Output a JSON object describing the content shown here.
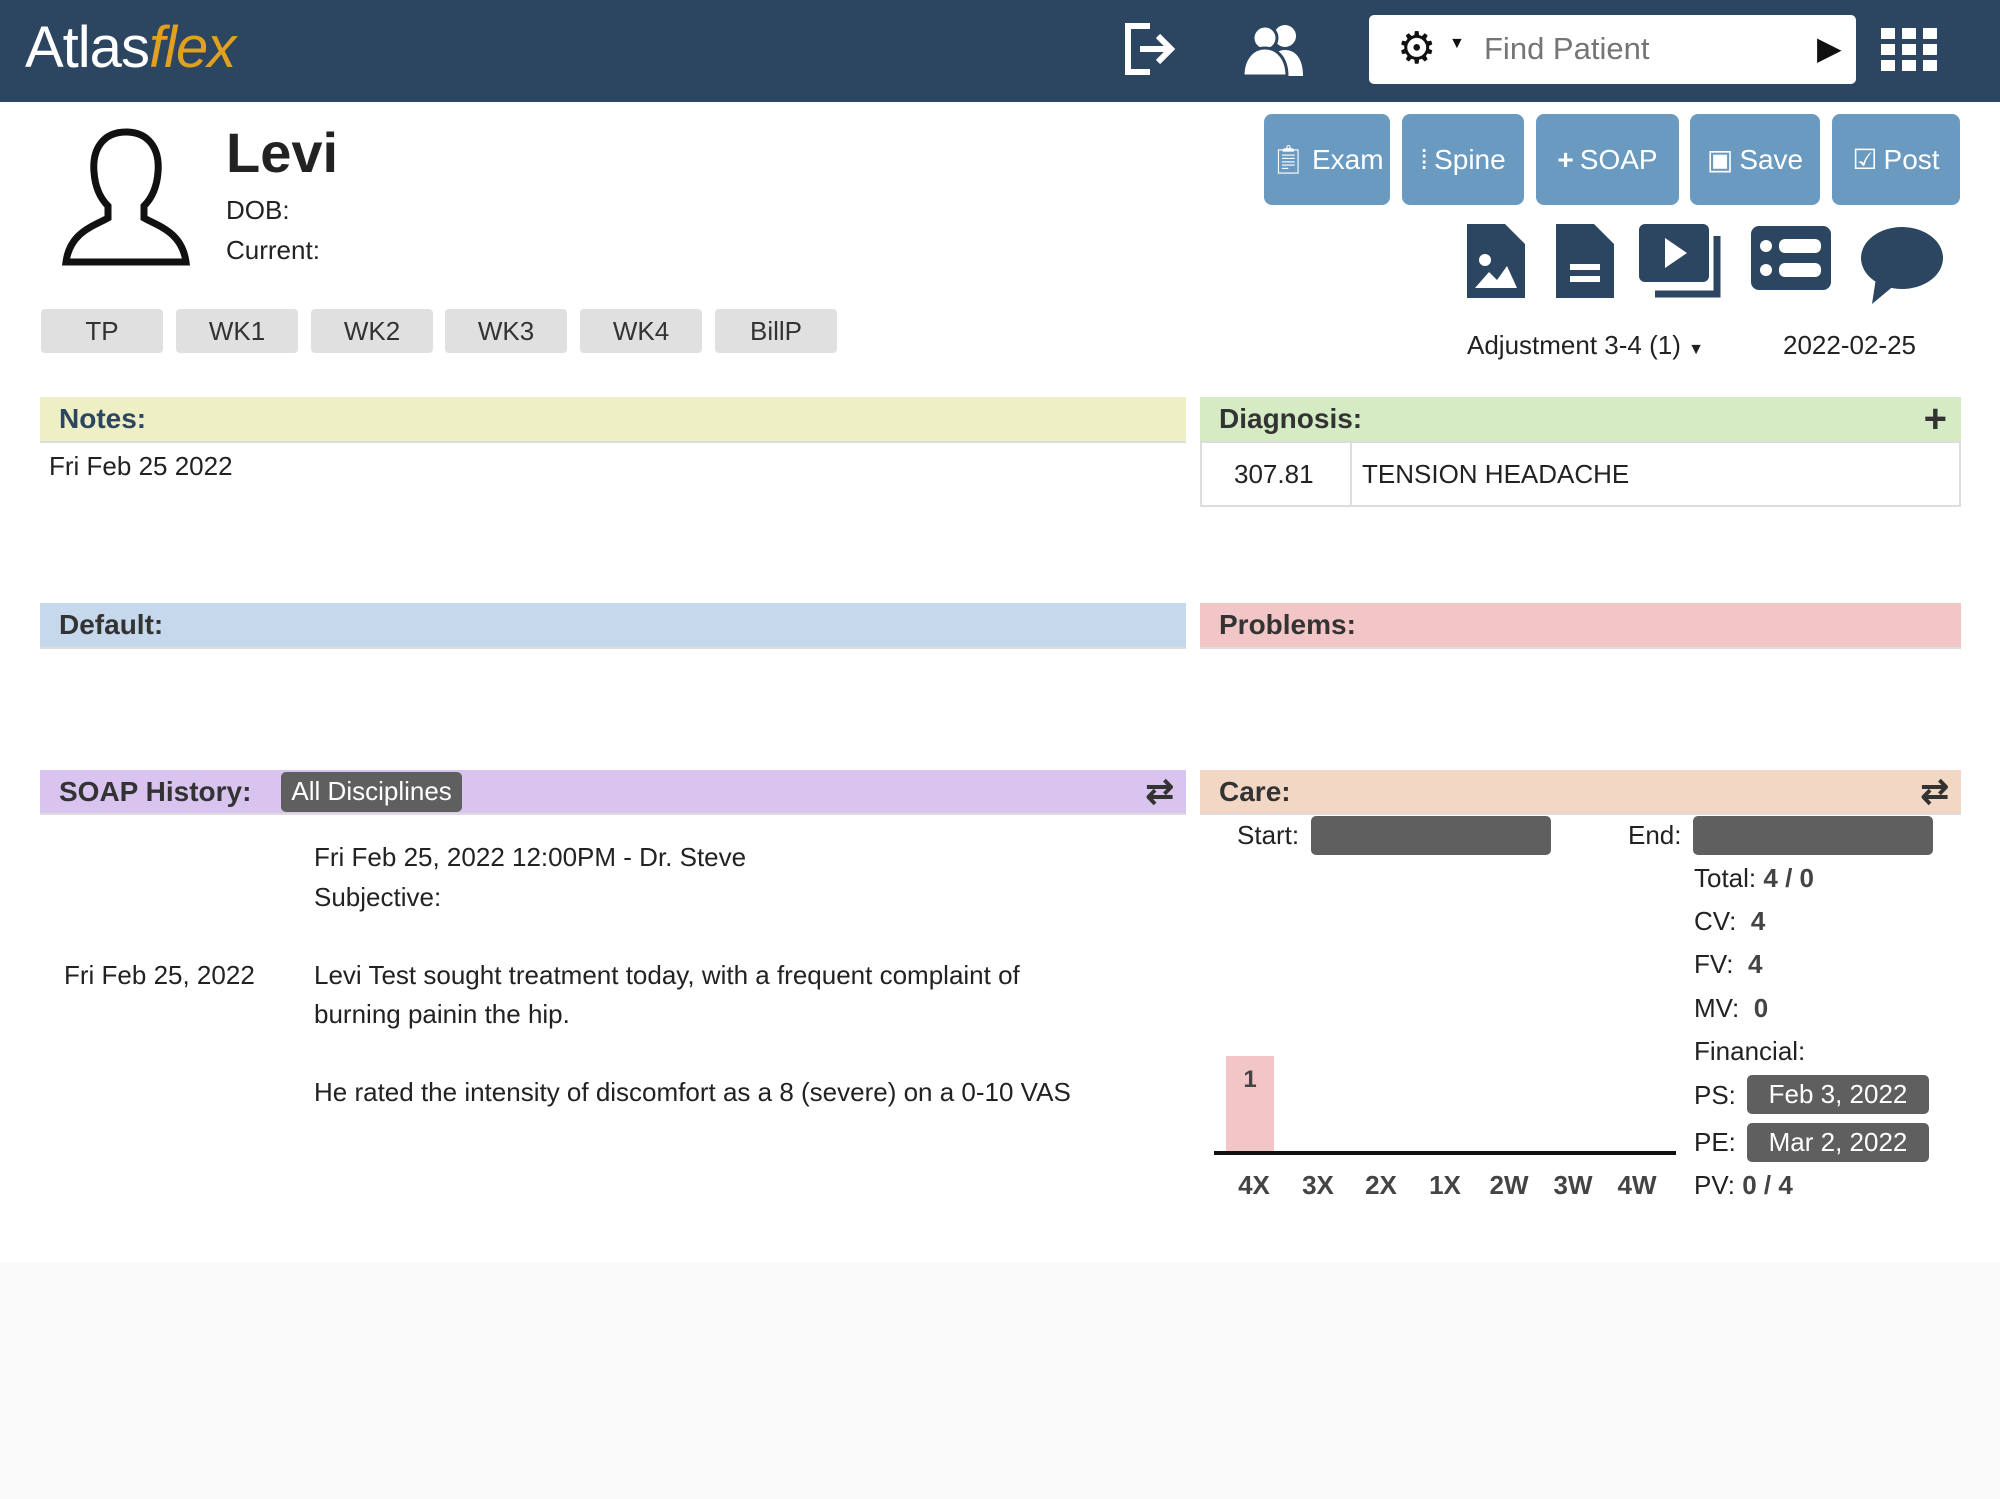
{
  "header": {
    "logo_main": "Atlas",
    "logo_accent": "flex",
    "search_placeholder": "Find Patient"
  },
  "patient": {
    "name": "Levi",
    "dob_label": "DOB:",
    "current_label": "Current:"
  },
  "actions": [
    {
      "label": "Exam",
      "icon": "clipboard-icon"
    },
    {
      "label": "Spine",
      "icon": "spine-icon"
    },
    {
      "label": "SOAP",
      "icon": "plus-icon"
    },
    {
      "label": "Save",
      "icon": "save-icon"
    },
    {
      "label": "Post",
      "icon": "check-square-icon"
    }
  ],
  "tabs": [
    "TP",
    "WK1",
    "WK2",
    "WK3",
    "WK4",
    "BillP"
  ],
  "visit": {
    "type": "Adjustment 3-4 (1)",
    "date": "2022-02-25"
  },
  "notes": {
    "title": "Notes:",
    "text": "Fri Feb 25 2022"
  },
  "diagnosis": {
    "title": "Diagnosis:",
    "rows": [
      {
        "code": "307.81",
        "desc": "TENSION HEADACHE"
      }
    ]
  },
  "default": {
    "title": "Default:"
  },
  "problems": {
    "title": "Problems:"
  },
  "soap": {
    "title": "SOAP History:",
    "filter": "All Disciplines",
    "date": "Fri Feb 25, 2022",
    "entry_header": "Fri Feb 25, 2022 12:00PM - Dr. Steve",
    "section": "Subjective:",
    "line1": "Levi Test sought treatment today, with a frequent complaint of",
    "line2": "burning painin the hip.",
    "line3": "He rated the intensity of discomfort as a 8 (severe) on a 0-10 VAS"
  },
  "care": {
    "title": "Care:",
    "start_label": "Start:",
    "end_label": "End:",
    "total_label": "Total:",
    "total": "4 / 0",
    "cv_label": "CV:",
    "cv": "4",
    "fv_label": "FV:",
    "fv": "4",
    "mv_label": "MV:",
    "mv": "0",
    "financial_label": "Financial:",
    "ps_label": "PS:",
    "ps": "Feb 3, 2022",
    "pe_label": "PE:",
    "pe": "Mar 2, 2022",
    "pv_label": "PV:",
    "pv": "0 / 4"
  },
  "colors": {
    "header": "#2c4560",
    "button": "#6b9ac0",
    "notes": "#eeefc4",
    "diagnosis": "#d4ebc4",
    "default": "#c5d8ec",
    "problems": "#f2c6c6",
    "soap": "#d8c4ee",
    "care": "#f2d8c4",
    "bar": "#f2c6c6"
  },
  "chart_data": {
    "type": "bar",
    "categories": [
      "4X",
      "3X",
      "2X",
      "1X",
      "2W",
      "3W",
      "4W"
    ],
    "values": [
      1,
      0,
      0,
      0,
      0,
      0,
      0
    ],
    "data_labels": [
      "1",
      "",
      "",
      "",
      "",
      "",
      ""
    ]
  }
}
